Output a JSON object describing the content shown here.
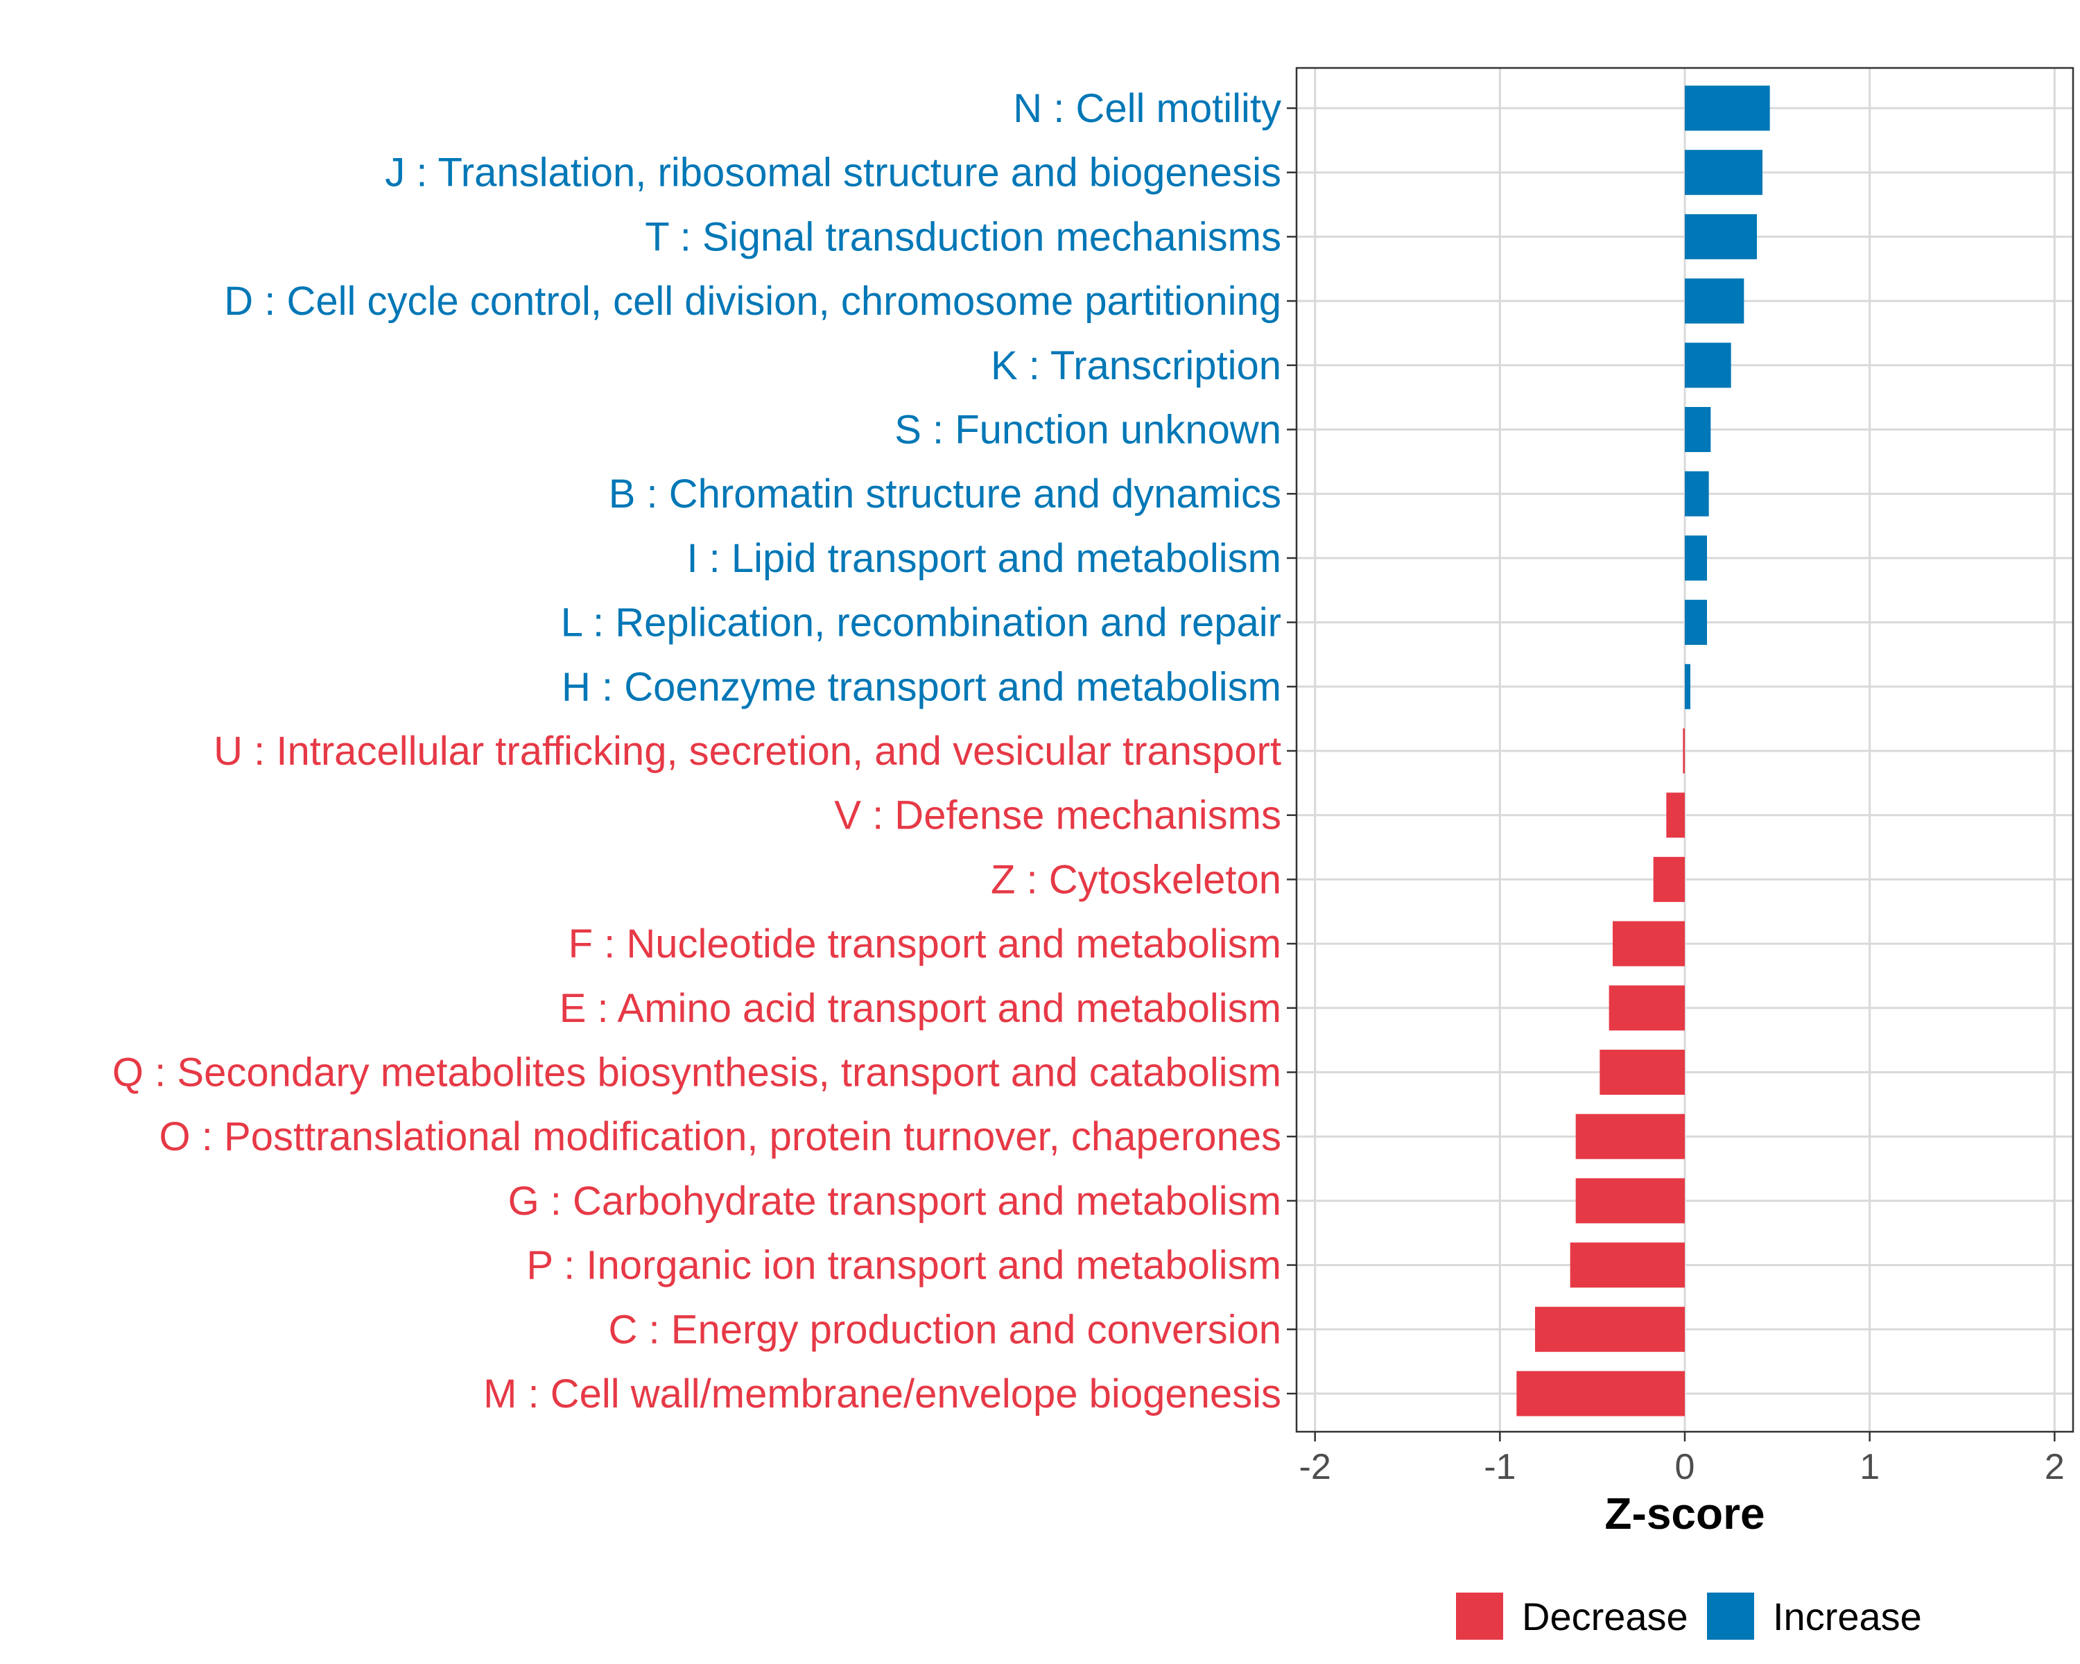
{
  "chart_data": {
    "type": "bar",
    "orientation": "horizontal",
    "xlabel": "Z-score",
    "ylabel": "",
    "xlim": [
      -2.1,
      2.1
    ],
    "xticks": [
      -2,
      -1,
      0,
      1,
      2
    ],
    "xtick_labels": [
      "-2",
      "-1",
      "0",
      "1",
      "2"
    ],
    "grid": true,
    "legend_position": "bottom",
    "colors": {
      "Decrease": "#e63946",
      "Increase": "#0077b6"
    },
    "legend": [
      {
        "label": "Decrease",
        "color": "#e63946"
      },
      {
        "label": "Increase",
        "color": "#0077b6"
      }
    ],
    "categories": [
      "N : Cell motility",
      "J : Translation, ribosomal structure and biogenesis",
      "T : Signal transduction mechanisms",
      "D : Cell cycle control, cell division, chromosome partitioning",
      "K : Transcription",
      "S : Function unknown",
      "B : Chromatin structure and dynamics",
      "I : Lipid transport and metabolism",
      "L : Replication, recombination and repair",
      "H : Coenzyme transport and metabolism",
      "U : Intracellular trafficking, secretion, and vesicular transport",
      "V : Defense mechanisms",
      "Z : Cytoskeleton",
      "F : Nucleotide transport and metabolism",
      "E : Amino acid transport and metabolism",
      "Q : Secondary metabolites biosynthesis, transport and catabolism",
      "O : Posttranslational modification, protein turnover, chaperones",
      "G : Carbohydrate transport and metabolism",
      "P : Inorganic ion transport and metabolism",
      "C : Energy production and conversion",
      "M : Cell wall/membrane/envelope biogenesis"
    ],
    "values": [
      0.46,
      0.42,
      0.39,
      0.32,
      0.25,
      0.14,
      0.13,
      0.12,
      0.12,
      0.03,
      -0.01,
      -0.1,
      -0.17,
      -0.39,
      -0.41,
      -0.46,
      -0.59,
      -0.59,
      -0.62,
      -0.81,
      -0.91
    ],
    "groups": [
      "Increase",
      "Increase",
      "Increase",
      "Increase",
      "Increase",
      "Increase",
      "Increase",
      "Increase",
      "Increase",
      "Increase",
      "Decrease",
      "Decrease",
      "Decrease",
      "Decrease",
      "Decrease",
      "Decrease",
      "Decrease",
      "Decrease",
      "Decrease",
      "Decrease",
      "Decrease"
    ]
  }
}
